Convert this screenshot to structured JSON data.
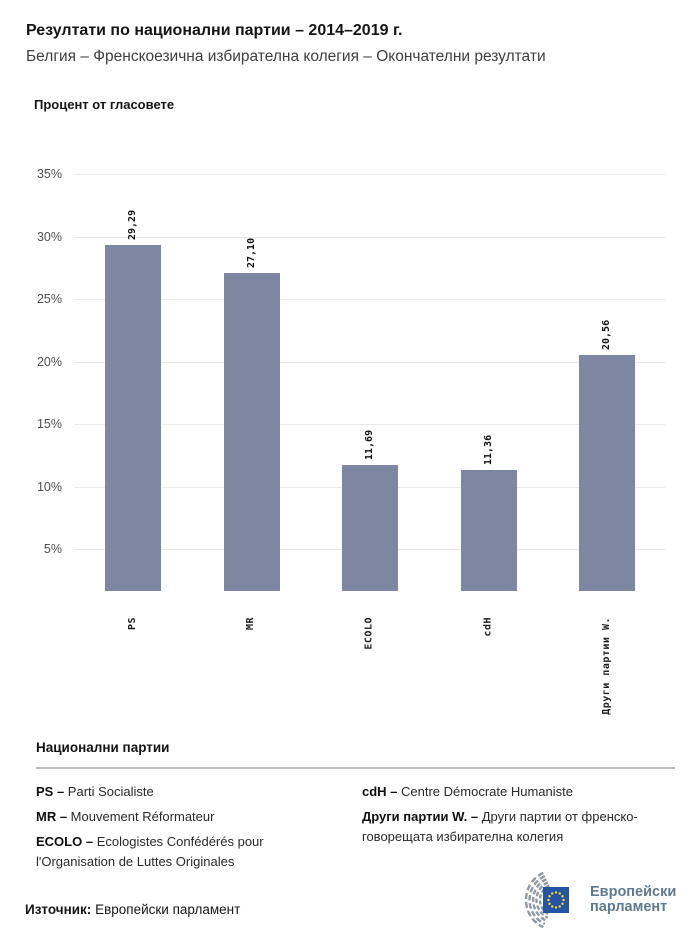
{
  "header": {
    "title": "Резултати по национални партии – 2014–2019 г.",
    "subtitle": "Белгия – Френскоезична избирателна колегия – Окончателни резултати"
  },
  "chart_data": {
    "type": "bar",
    "title": "Процент от гласовете",
    "xlabel": "",
    "ylabel": "Процент от гласовете",
    "categories": [
      "PS",
      "MR",
      "ECOLO",
      "cdH",
      "Други партии W."
    ],
    "values": [
      29.29,
      27.1,
      11.69,
      11.36,
      20.56
    ],
    "value_labels": [
      "29,29",
      "27,10",
      "11,69",
      "11,36",
      "20,56"
    ],
    "ytick_labels": [
      "35%",
      "30%",
      "25%",
      "20%",
      "15%",
      "10%",
      "5%"
    ],
    "ytick_values": [
      35,
      30,
      25,
      20,
      15,
      10,
      5
    ],
    "ylim": [
      0,
      37
    ],
    "grid": true,
    "legend_position": "none"
  },
  "legend": {
    "heading": "Национални партии",
    "columns": [
      [
        {
          "abbr": "PS –",
          "name": "Parti Socialiste"
        },
        {
          "abbr": "MR –",
          "name": "Mouvement Réformateur"
        },
        {
          "abbr": "ECOLO –",
          "name": "Ecologistes Confédérés pour l'Organisation de Luttes Originales"
        }
      ],
      [
        {
          "abbr": "cdH –",
          "name": "Centre Démocrate Humaniste"
        },
        {
          "abbr": "Други партии W. –",
          "name": "Други партии от френско-говорещата избирателна колегия"
        }
      ]
    ]
  },
  "footer": {
    "source_label": "Източник:",
    "source_value": "Европейски парламент",
    "logo_text_line1": "Европейски",
    "logo_text_line2": "парламент"
  },
  "colors": {
    "bar": "#7d87a2",
    "gridline": "#e9e9eb",
    "ytick_text": "#4f4f51",
    "value_label_text": "#111111",
    "category_label_text": "#212121",
    "title_text": "#151515",
    "subtitle_text": "#3f3f3f",
    "legend_divider": "#bdbdbd",
    "logo_blue": "#2455a4",
    "logo_star_yellow": "#ffd617",
    "logo_arc_gray": "#8d9aa3",
    "logo_text": "#5d7a8f"
  }
}
